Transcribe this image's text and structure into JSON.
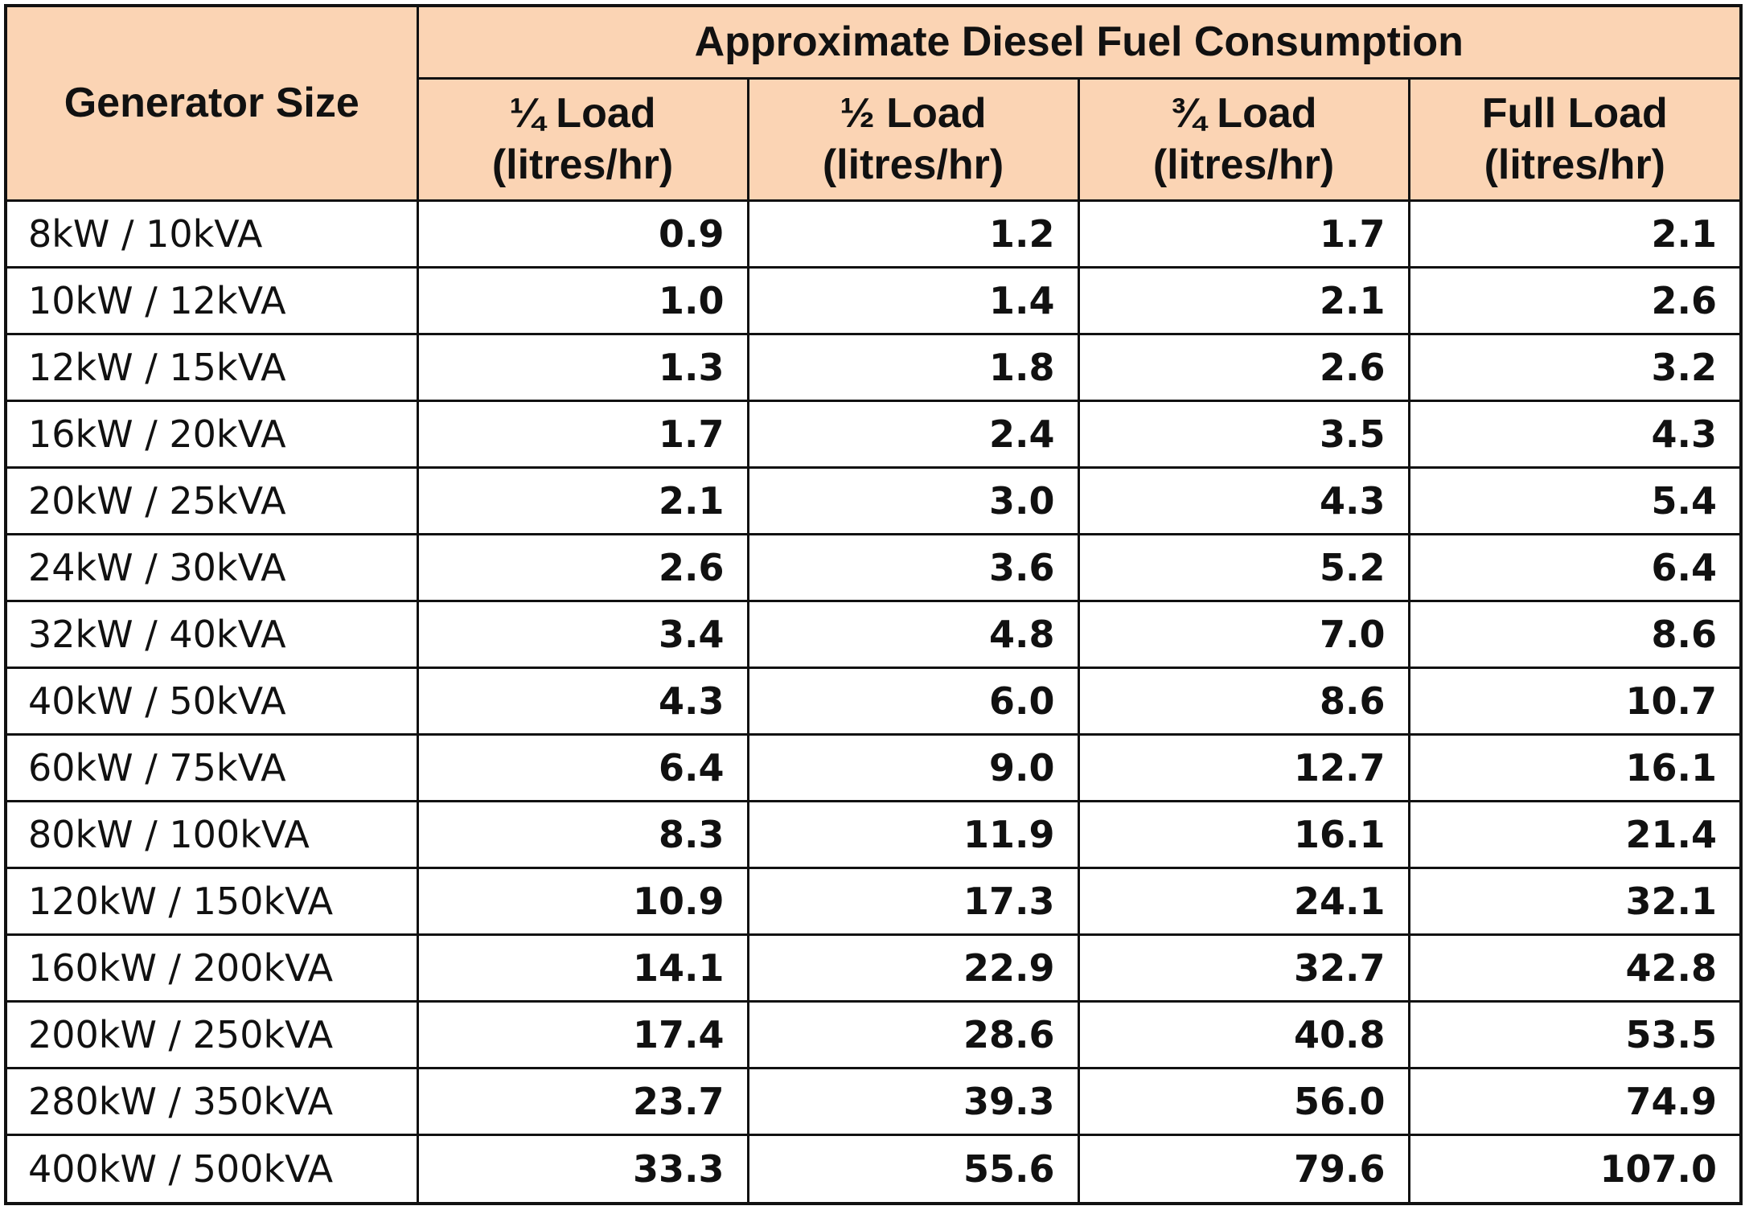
{
  "table": {
    "header": {
      "size_label": "Generator Size",
      "group_label": "Approximate Diesel Fuel Consumption",
      "columns": [
        {
          "name": "¼ Load",
          "unit": "(litres/hr)"
        },
        {
          "name": "½ Load",
          "unit": "(litres/hr)"
        },
        {
          "name": "¾ Load",
          "unit": "(litres/hr)"
        },
        {
          "name": "Full Load",
          "unit": "(litres/hr)"
        }
      ]
    },
    "rows": [
      {
        "size": "8kW / 10kVA",
        "values": [
          "0.9",
          "1.2",
          "1.7",
          "2.1"
        ]
      },
      {
        "size": "10kW / 12kVA",
        "values": [
          "1.0",
          "1.4",
          "2.1",
          "2.6"
        ]
      },
      {
        "size": "12kW / 15kVA",
        "values": [
          "1.3",
          "1.8",
          "2.6",
          "3.2"
        ]
      },
      {
        "size": "16kW / 20kVA",
        "values": [
          "1.7",
          "2.4",
          "3.5",
          "4.3"
        ]
      },
      {
        "size": "20kW / 25kVA",
        "values": [
          "2.1",
          "3.0",
          "4.3",
          "5.4"
        ]
      },
      {
        "size": "24kW / 30kVA",
        "values": [
          "2.6",
          "3.6",
          "5.2",
          "6.4"
        ]
      },
      {
        "size": "32kW / 40kVA",
        "values": [
          "3.4",
          "4.8",
          "7.0",
          "8.6"
        ]
      },
      {
        "size": "40kW / 50kVA",
        "values": [
          "4.3",
          "6.0",
          "8.6",
          "10.7"
        ]
      },
      {
        "size": "60kW / 75kVA",
        "values": [
          "6.4",
          "9.0",
          "12.7",
          "16.1"
        ]
      },
      {
        "size": "80kW / 100kVA",
        "values": [
          "8.3",
          "11.9",
          "16.1",
          "21.4"
        ]
      },
      {
        "size": "120kW / 150kVA",
        "values": [
          "10.9",
          "17.3",
          "24.1",
          "32.1"
        ]
      },
      {
        "size": "160kW / 200kVA",
        "values": [
          "14.1",
          "22.9",
          "32.7",
          "42.8"
        ]
      },
      {
        "size": "200kW / 250kVA",
        "values": [
          "17.4",
          "28.6",
          "40.8",
          "53.5"
        ]
      },
      {
        "size": "280kW / 350kVA",
        "values": [
          "23.7",
          "39.3",
          "56.0",
          "74.9"
        ]
      },
      {
        "size": "400kW / 500kVA",
        "values": [
          "33.3",
          "55.6",
          "79.6",
          "107.0"
        ]
      }
    ]
  },
  "colors": {
    "header_background": "#fbd4b4",
    "border": "#111111",
    "text": "#111111",
    "body_background": "#ffffff"
  }
}
